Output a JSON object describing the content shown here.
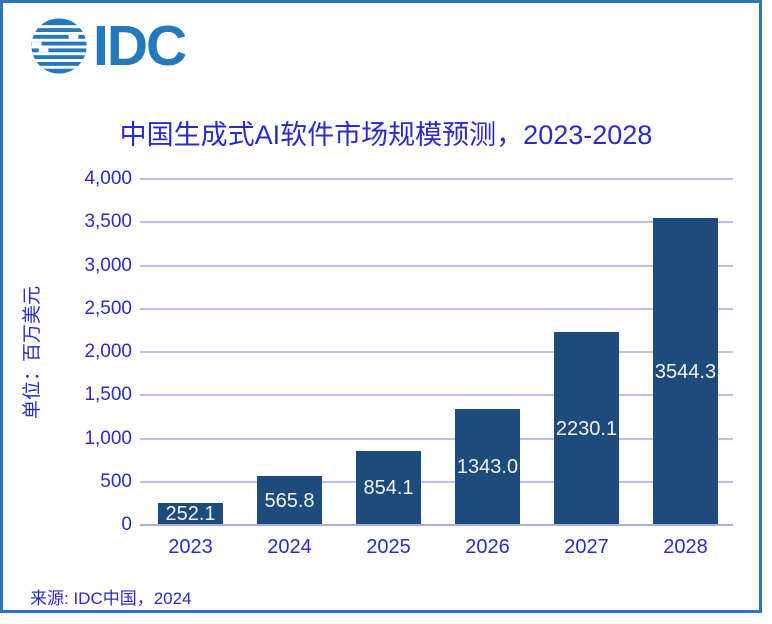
{
  "logo": {
    "text": "IDC",
    "icon": "striped-globe-icon"
  },
  "source_note": "来源: IDC中国，2024",
  "colors": {
    "accent_text": "#2B2BCC",
    "bar_fill": "#1D4B7C",
    "bar_label": "#F2F2F2",
    "gridline": "#BDBCEE",
    "baseline": "#ABAAE4",
    "border": "#2E75B6",
    "logo_blue": "#2478BE"
  },
  "chart_data": {
    "type": "bar",
    "title": "中国生成式AI软件市场规模预测，2023-2028",
    "categories": [
      "2023",
      "2024",
      "2025",
      "2026",
      "2027",
      "2028"
    ],
    "values": [
      252.1,
      565.8,
      854.1,
      1343.0,
      2230.1,
      3544.3
    ],
    "value_labels": [
      "252.1",
      "565.8",
      "854.1",
      "1343.0",
      "2230.1",
      "3544.3"
    ],
    "xlabel": "",
    "ylabel": "单位：百万美元",
    "ylim": [
      0,
      4000
    ],
    "ytick_step": 500,
    "ytick_labels": [
      "0",
      "500",
      "1,000",
      "1,500",
      "2,000",
      "2,500",
      "3,000",
      "3,500",
      "4,000"
    ],
    "grid": "horizontal",
    "legend": "none",
    "value_label_position": "inside-center",
    "bar_text_color": "#F2F2F2"
  }
}
